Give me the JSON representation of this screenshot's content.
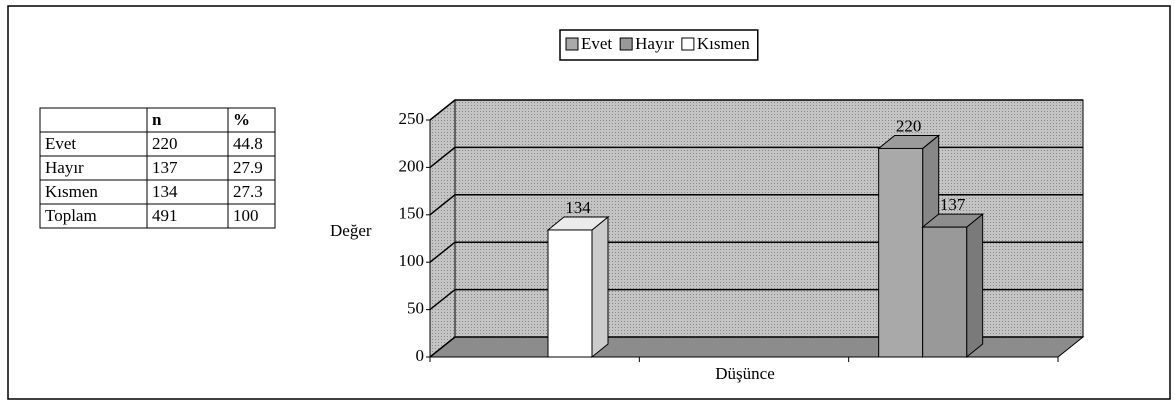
{
  "table": {
    "header": [
      "n",
      "%"
    ],
    "rows": [
      [
        "Evet",
        220,
        44.8
      ],
      [
        "Hayır",
        137,
        27.9
      ],
      [
        "Kısmen",
        134,
        27.3
      ],
      [
        "Toplam",
        491,
        100
      ]
    ]
  },
  "chart_data": {
    "type": "bar3d",
    "x_label": "Düşünce",
    "y_label": "Değer",
    "categories": [
      null,
      null,
      null
    ],
    "series": [
      {
        "name": "Evet",
        "color": "#a9a9a9",
        "values": [
          null,
          null,
          220
        ]
      },
      {
        "name": "Hayır",
        "color": "#999999",
        "values": [
          null,
          null,
          137
        ]
      },
      {
        "name": "Kısmen",
        "color": "#ffffff",
        "values": [
          134,
          null,
          null
        ]
      }
    ],
    "ylim": [
      0,
      250
    ],
    "yticks": [
      0,
      50,
      100,
      150,
      200,
      250
    ],
    "grid": true,
    "legend": "top"
  }
}
